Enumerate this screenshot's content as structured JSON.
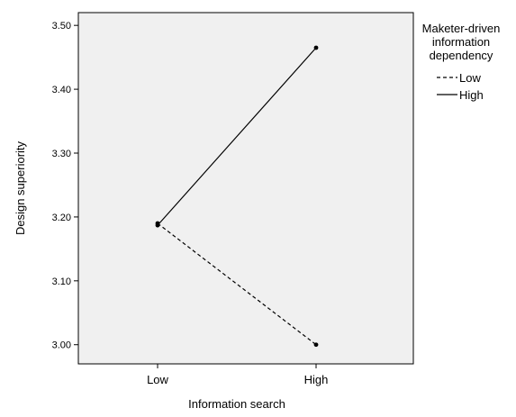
{
  "chart_data": {
    "type": "line",
    "title": "",
    "xlabel": "Information search",
    "ylabel": "Design superiority",
    "categories": [
      "Low",
      "High"
    ],
    "ylim": [
      2.97,
      3.52
    ],
    "yticks": [
      "3.00",
      "3.10",
      "3.20",
      "3.30",
      "3.40",
      "3.50"
    ],
    "grid": false,
    "legend": {
      "title": "Maketer-driven information dependency",
      "title_lines": [
        "Maketer-driven",
        "information",
        "dependency"
      ],
      "placement": "right"
    },
    "series": [
      {
        "name": "Low",
        "values": [
          3.19,
          3.0
        ],
        "style": "dashed"
      },
      {
        "name": "High",
        "values": [
          3.187,
          3.465
        ],
        "style": "solid"
      }
    ],
    "colors": {
      "plot_background": "#f0f0f0",
      "line": "#000000"
    }
  }
}
